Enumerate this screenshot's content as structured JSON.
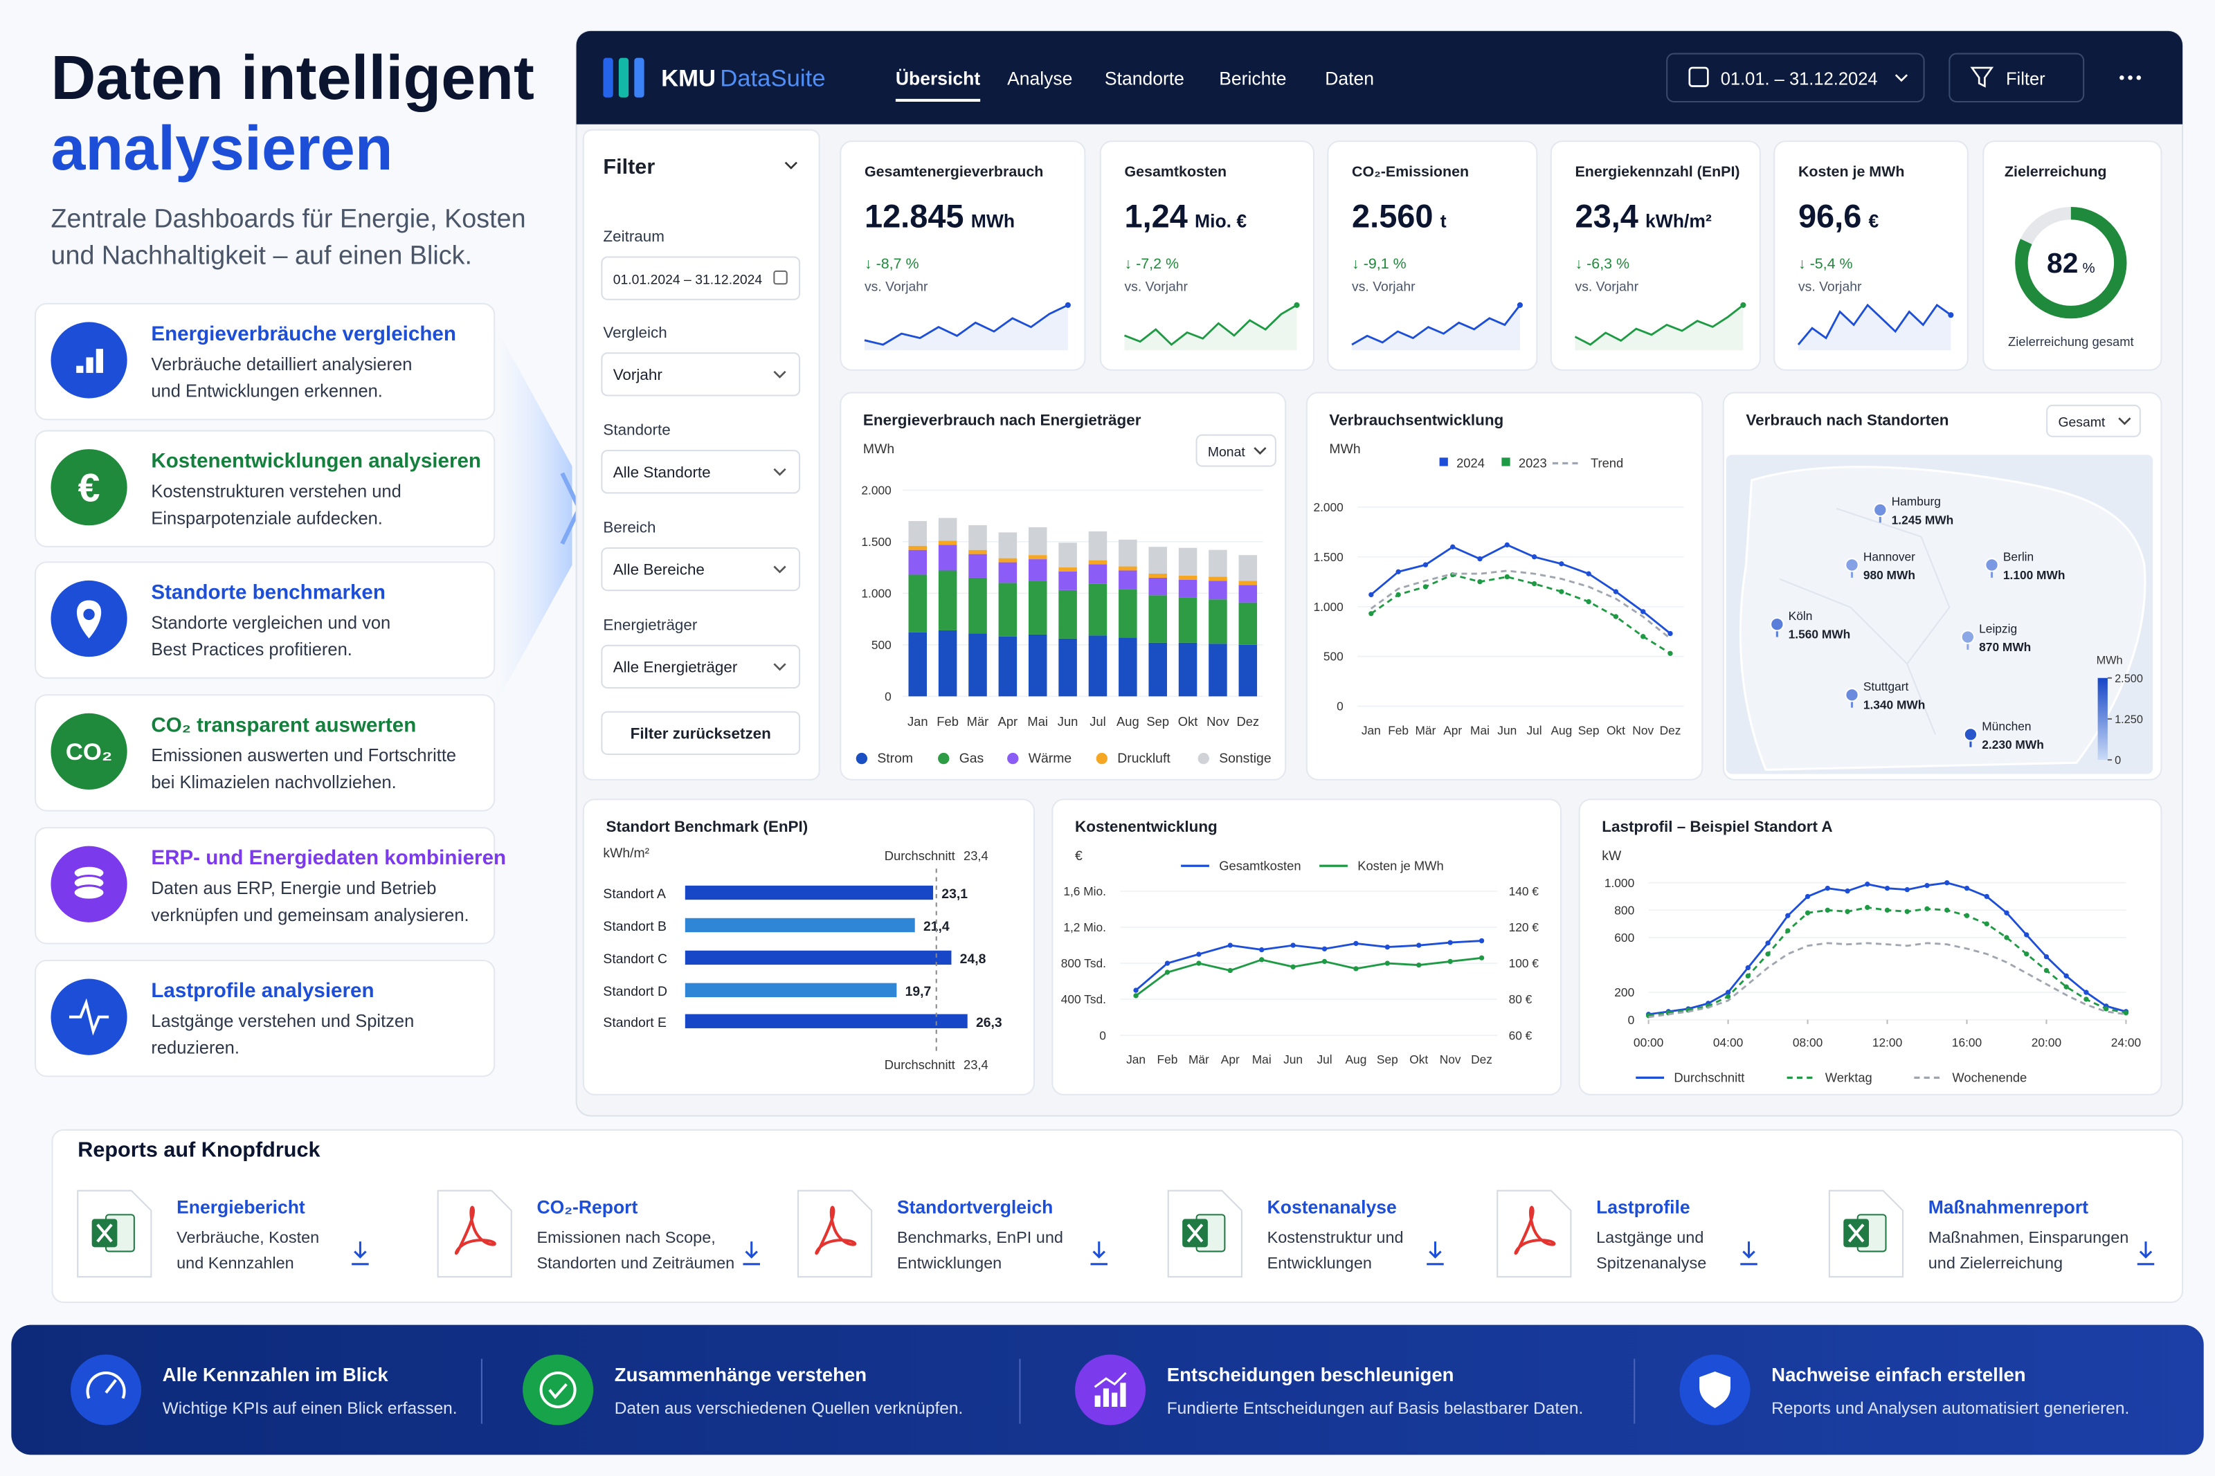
{
  "hero": {
    "title_line1": "Daten intelligent",
    "title_line2": "analysieren",
    "subtitle_line1": "Zentrale Dashboards für Energie, Kosten",
    "subtitle_line2": "und Nachhaltigkeit – auf einen Blick."
  },
  "features": [
    {
      "title": "Energieverbräuche vergleichen",
      "lines": [
        "Verbräuche detailliert analysieren",
        "und Entwicklungen erkennen."
      ]
    },
    {
      "title": "Kostenentwicklungen analysieren",
      "icon_label": "€",
      "lines": [
        "Kostenstrukturen verstehen und",
        "Einsparpotenziale aufdecken."
      ]
    },
    {
      "title": "Standorte benchmarken",
      "lines": [
        "Standorte vergleichen und von",
        "Best Practices profitieren."
      ]
    },
    {
      "title": "CO₂ transparent auswerten",
      "icon_label": "CO₂",
      "lines": [
        "Emissionen auswerten und Fortschritte",
        "bei Klimazielen nachvollziehen."
      ]
    },
    {
      "title": "ERP- und Energiedaten kombinieren",
      "lines": [
        "Daten aus ERP, Energie und Betrieb",
        "verknüpfen und gemeinsam analysieren."
      ]
    },
    {
      "title": "Lastprofile analysieren",
      "lines": [
        "Lastgänge verstehen und Spitzen",
        "reduzieren."
      ]
    }
  ],
  "app": {
    "brand": {
      "name": "KMU",
      "suffix": "DataSuite"
    },
    "nav": [
      {
        "label": "Übersicht",
        "active": true
      },
      {
        "label": "Analyse"
      },
      {
        "label": "Standorte"
      },
      {
        "label": "Berichte"
      },
      {
        "label": "Daten"
      }
    ],
    "date_range": "01.01. – 31.12.2024",
    "filter_button": "Filter",
    "filter": {
      "title": "Filter",
      "fields": [
        {
          "label": "Zeitraum",
          "value": "01.01.2024 – 31.12.2024"
        },
        {
          "label": "Vergleich",
          "value": "Vorjahr"
        },
        {
          "label": "Standorte",
          "value": "Alle Standorte"
        },
        {
          "label": "Bereich",
          "value": "Alle Bereiche"
        },
        {
          "label": "Energieträger",
          "value": "Alle Energieträger"
        }
      ],
      "reset": "Filter zurücksetzen"
    },
    "kpis": [
      {
        "title": "Gesamtenergieverbrauch",
        "value": "12.845",
        "unit": "MWh",
        "change": "↓ -8,7 %",
        "compare": "vs. Vorjahr",
        "color": "#1d4ed8",
        "trend": [
          30,
          28,
          33,
          31,
          36,
          32,
          38,
          34,
          40,
          36,
          42,
          46
        ]
      },
      {
        "title": "Gesamtkosten",
        "value": "1,24",
        "unit": "Mio. €",
        "change": "↓ -7,2 %",
        "compare": "vs. Vorjahr",
        "color": "#1f9a44",
        "trend": [
          40,
          38,
          42,
          37,
          41,
          39,
          44,
          40,
          45,
          42,
          47,
          50
        ]
      },
      {
        "title": "CO₂-Emissionen",
        "value": "2.560",
        "unit": "t",
        "change": "↓ -9,1 %",
        "compare": "vs. Vorjahr",
        "color": "#1d4ed8",
        "trend": [
          30,
          34,
          31,
          36,
          33,
          38,
          35,
          40,
          37,
          42,
          39,
          48
        ]
      },
      {
        "title": "Energiekennzahl (EnPI)",
        "value": "23,4",
        "unit": "kWh/m²",
        "change": "↓ -6,3 %",
        "compare": "vs. Vorjahr",
        "color": "#1f9a44",
        "trend": [
          36,
          32,
          38,
          34,
          40,
          37,
          42,
          39,
          44,
          41,
          46,
          52
        ]
      },
      {
        "title": "Kosten je MWh",
        "value": "96,6",
        "unit": "€",
        "change": "↓ -5,4 %",
        "compare": "vs. Vorjahr",
        "color": "#1d4ed8",
        "trend": [
          28,
          33,
          30,
          38,
          34,
          40,
          36,
          32,
          38,
          34,
          40,
          37
        ]
      }
    ],
    "goal": {
      "title": "Zielerreichung",
      "value": 82,
      "unit": "%",
      "caption": "Zielerreichung gesamt",
      "color": "#1f8a3b"
    },
    "charts": {
      "energy": {
        "type": "stacked_bar",
        "title": "Energieverbrauch nach Energieträger",
        "y_label": "MWh",
        "control": "Monat",
        "categories": [
          "Jan",
          "Feb",
          "Mär",
          "Apr",
          "Mai",
          "Jun",
          "Jul",
          "Aug",
          "Sep",
          "Okt",
          "Nov",
          "Dez"
        ],
        "ylim": [
          0,
          2000
        ],
        "yticks": [
          0,
          500,
          {
            "value": 1000,
            "label": "1.000"
          },
          {
            "value": 1500,
            "label": "1.500"
          },
          {
            "value": 2000,
            "label": "2.000"
          }
        ],
        "grid": true,
        "series": [
          {
            "name": "Strom",
            "color": "#1a4fc4",
            "values": [
              620,
              640,
              610,
              580,
              600,
              560,
              590,
              570,
              520,
              520,
              510,
              500
            ]
          },
          {
            "name": "Gas",
            "color": "#2e9b45",
            "values": [
              560,
              580,
              540,
              520,
              520,
              470,
              500,
              470,
              460,
              440,
              430,
              410
            ]
          },
          {
            "name": "Wärme",
            "color": "#8b5cf6",
            "values": [
              240,
              250,
              230,
              200,
              210,
              180,
              190,
              180,
              170,
              170,
              180,
              170
            ]
          },
          {
            "name": "Druckluft",
            "color": "#f5a623",
            "values": [
              40,
              40,
              40,
              40,
              40,
              40,
              40,
              40,
              40,
              40,
              40,
              40
            ]
          },
          {
            "name": "Sonstige",
            "color": "#cfd3d8",
            "values": [
              240,
              220,
              240,
              250,
              270,
              240,
              280,
              260,
              260,
              270,
              260,
              250
            ]
          }
        ]
      },
      "development": {
        "type": "line",
        "title": "Verbrauchsentwicklung",
        "y_label": "MWh",
        "categories": [
          "Jan",
          "Feb",
          "Mär",
          "Apr",
          "Mai",
          "Jun",
          "Jul",
          "Aug",
          "Sep",
          "Okt",
          "Nov",
          "Dez"
        ],
        "ylim": [
          0,
          2000
        ],
        "yticks": [
          0,
          500,
          {
            "value": 1000,
            "label": "1.000"
          },
          {
            "value": 1500,
            "label": "1.500"
          },
          {
            "value": 2000,
            "label": "2.000"
          }
        ],
        "grid": true,
        "series": [
          {
            "name": "2024",
            "color": "#1d4ed8",
            "style": "solid",
            "markers": true,
            "values": [
              1120,
              1350,
              1420,
              1600,
              1480,
              1620,
              1500,
              1430,
              1330,
              1150,
              950,
              730
            ]
          },
          {
            "name": "2023",
            "color": "#1f9a44",
            "style": "dashed",
            "markers": true,
            "values": [
              930,
              1120,
              1200,
              1320,
              1250,
              1300,
              1230,
              1150,
              1050,
              900,
              700,
              530
            ]
          },
          {
            "name": "Trend",
            "color": "#a0a6b0",
            "style": "dashed",
            "markers": false,
            "values": [
              980,
              1180,
              1260,
              1330,
              1330,
              1360,
              1330,
              1280,
              1200,
              1080,
              900,
              680
            ]
          }
        ]
      },
      "locations": {
        "type": "map",
        "title": "Verbrauch nach Standorten",
        "control": "Gesamt",
        "unit": "MWh",
        "locations": [
          {
            "name": "Hamburg",
            "value": 1245,
            "value_label": "1.245 MWh"
          },
          {
            "name": "Berlin",
            "value": 1100,
            "value_label": "1.100 MWh"
          },
          {
            "name": "Hannover",
            "value": 980,
            "value_label": "980 MWh"
          },
          {
            "name": "Köln",
            "value": 1560,
            "value_label": "1.560 MWh"
          },
          {
            "name": "Leipzig",
            "value": 870,
            "value_label": "870 MWh"
          },
          {
            "name": "Stuttgart",
            "value": 1340,
            "value_label": "1.340 MWh"
          },
          {
            "name": "München",
            "value": 2230,
            "value_label": "2.230 MWh"
          }
        ],
        "color_lim": [
          0,
          2500
        ],
        "color_ticks": [
          {
            "value": 2500,
            "label": "2.500"
          },
          {
            "value": 1250,
            "label": "1.250"
          },
          0
        ],
        "colors": [
          "#c9dbf7",
          "#1746c7"
        ]
      },
      "benchmark": {
        "type": "hbar",
        "title": "Standort Benchmark (EnPI)",
        "x_label": "kWh/m²",
        "categories": [
          "Standort A",
          "Standort B",
          "Standort C",
          "Standort D",
          "Standort E"
        ],
        "values": [
          23.1,
          21.4,
          24.8,
          19.7,
          26.3
        ],
        "value_labels": [
          "23,1",
          "21,4",
          "24,8",
          "19,7",
          "26,3"
        ],
        "colors": [
          "#1746c7",
          "#2f86d6",
          "#1746c7",
          "#2f86d6",
          "#1746c7"
        ],
        "reference": {
          "label": "Durchschnitt",
          "value": 23.4,
          "value_label": "23,4"
        }
      },
      "costs": {
        "type": "line",
        "title": "Kostenentwicklung",
        "y_label": "€",
        "categories": [
          "Jan",
          "Feb",
          "Mär",
          "Apr",
          "Mai",
          "Jun",
          "Jul",
          "Aug",
          "Sep",
          "Okt",
          "Nov",
          "Dez"
        ],
        "ylim": [
          0,
          1600000
        ],
        "yticks": [
          0,
          {
            "value": 400000,
            "label": "400 Tsd."
          },
          {
            "value": 800000,
            "label": "800 Tsd."
          },
          {
            "value": 1200000,
            "label": "1,2 Mio."
          },
          {
            "value": 1600000,
            "label": "1,6 Mio."
          }
        ],
        "y2lim": [
          60,
          140
        ],
        "y2ticks": [
          {
            "value": 60,
            "label": "60 €"
          },
          {
            "value": 80,
            "label": "80 €"
          },
          {
            "value": 100,
            "label": "100 €"
          },
          {
            "value": 120,
            "label": "120 €"
          },
          {
            "value": 140,
            "label": "140 €"
          }
        ],
        "grid": true,
        "series": [
          {
            "name": "Gesamtkosten",
            "color": "#1d4ed8",
            "style": "solid",
            "markers": true,
            "values": [
              500000,
              800000,
              900000,
              1000000,
              950000,
              1000000,
              960000,
              1020000,
              980000,
              1000000,
              1030000,
              1050000
            ]
          },
          {
            "name": "Kosten je MWh",
            "color": "#1f9a44",
            "style": "solid",
            "markers": true,
            "axis": "y2",
            "values": [
              82,
              95,
              100,
              96,
              102,
              98,
              101,
              97,
              100,
              99,
              101,
              103
            ]
          }
        ]
      },
      "load": {
        "type": "line",
        "title": "Lastprofil – Beispiel Standort A",
        "y_label": "kW",
        "x": [
          0,
          1,
          2,
          3,
          4,
          5,
          6,
          7,
          8,
          9,
          10,
          11,
          12,
          13,
          14,
          15,
          16,
          17,
          18,
          19,
          20,
          21,
          22,
          23,
          24
        ],
        "xlim": [
          0,
          24
        ],
        "xticks": [
          {
            "value": 0,
            "label": "00:00"
          },
          {
            "value": 4,
            "label": "04:00"
          },
          {
            "value": 8,
            "label": "08:00"
          },
          {
            "value": 12,
            "label": "12:00"
          },
          {
            "value": 16,
            "label": "16:00"
          },
          {
            "value": 20,
            "label": "20:00"
          },
          {
            "value": 24,
            "label": "24:00"
          }
        ],
        "ylim": [
          0,
          1000
        ],
        "yticks": [
          0,
          200,
          600,
          800,
          {
            "value": 1000,
            "label": "1.000"
          }
        ],
        "grid": true,
        "series": [
          {
            "name": "Durchschnitt",
            "color": "#1d4ed8",
            "style": "solid",
            "markers": true,
            "values": [
              40,
              60,
              80,
              120,
              200,
              380,
              560,
              760,
              900,
              960,
              940,
              990,
              960,
              950,
              980,
              1000,
              960,
              900,
              780,
              620,
              460,
              320,
              200,
              100,
              60
            ]
          },
          {
            "name": "Werktag",
            "color": "#1f9a44",
            "style": "dashed",
            "markers": true,
            "values": [
              30,
              50,
              70,
              100,
              170,
              320,
              480,
              650,
              780,
              800,
              790,
              820,
              800,
              790,
              810,
              800,
              760,
              700,
              600,
              480,
              360,
              240,
              150,
              80,
              50
            ]
          },
          {
            "name": "Wochenende",
            "color": "#a0a6b0",
            "style": "dashed",
            "markers": false,
            "values": [
              20,
              40,
              60,
              90,
              140,
              260,
              380,
              480,
              540,
              560,
              550,
              560,
              550,
              540,
              560,
              550,
              520,
              480,
              420,
              340,
              260,
              180,
              110,
              60,
              40
            ]
          }
        ]
      }
    }
  },
  "reports": {
    "title": "Reports auf Knopfdruck",
    "items": [
      {
        "title": "Energiebericht",
        "lines": [
          "Verbräuche, Kosten",
          "und Kennzahlen"
        ]
      },
      {
        "title": "CO₂-Report",
        "lines": [
          "Emissionen nach Scope,",
          "Standorten und Zeiträumen"
        ]
      },
      {
        "title": "Standortvergleich",
        "lines": [
          "Benchmarks, EnPI und",
          "Entwicklungen"
        ]
      },
      {
        "title": "Kostenanalyse",
        "lines": [
          "Kostenstruktur und",
          "Entwicklungen"
        ]
      },
      {
        "title": "Lastprofile",
        "lines": [
          "Lastgänge und",
          "Spitzenanalyse"
        ]
      },
      {
        "title": "Maßnahmenreport",
        "lines": [
          "Maßnahmen, Einsparungen",
          "und Zielerreichung"
        ]
      }
    ]
  },
  "benefits": [
    {
      "title": "Alle Kennzahlen im Blick",
      "text": "Wichtige KPIs auf einen Blick erfassen."
    },
    {
      "title": "Zusammenhänge verstehen",
      "text": "Daten aus verschiedenen Quellen verknüpfen."
    },
    {
      "title": "Entscheidungen beschleunigen",
      "text": "Fundierte Entscheidungen auf Basis belastbarer Daten."
    },
    {
      "title": "Nachweise einfach erstellen",
      "text": "Reports und Analysen automatisiert generieren."
    }
  ]
}
